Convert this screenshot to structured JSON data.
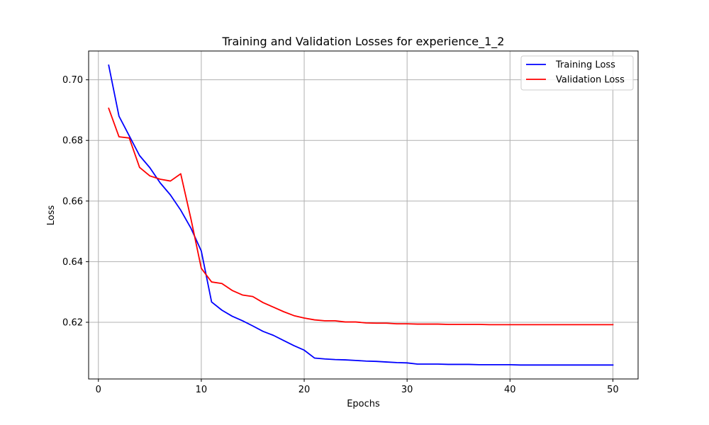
{
  "chart_data": {
    "type": "line",
    "title": "Training and Validation Losses for experience_1_2",
    "xlabel": "Epochs",
    "ylabel": "Loss",
    "xlim": [
      -0.95,
      52.45
    ],
    "ylim": [
      0.6013,
      0.7095
    ],
    "xticks": [
      0,
      10,
      20,
      30,
      40,
      50
    ],
    "yticks": [
      0.62,
      0.64,
      0.66,
      0.68,
      0.7
    ],
    "xtick_labels": [
      "0",
      "10",
      "20",
      "30",
      "40",
      "50"
    ],
    "ytick_labels": [
      "0.62",
      "0.64",
      "0.66",
      "0.68",
      "0.70"
    ],
    "grid": true,
    "legend": "top-right",
    "x": [
      1,
      2,
      3,
      4,
      5,
      6,
      7,
      8,
      9,
      10,
      11,
      12,
      13,
      14,
      15,
      16,
      17,
      18,
      19,
      20,
      21,
      22,
      23,
      24,
      25,
      26,
      27,
      28,
      29,
      30,
      31,
      32,
      33,
      34,
      35,
      36,
      37,
      38,
      39,
      40,
      41,
      42,
      43,
      44,
      45,
      46,
      47,
      48,
      49,
      50
    ],
    "series": [
      {
        "name": "Training Loss",
        "color": "#0000ff",
        "values": [
          0.7048,
          0.688,
          0.6815,
          0.675,
          0.671,
          0.666,
          0.662,
          0.657,
          0.651,
          0.6435,
          0.6267,
          0.624,
          0.622,
          0.6205,
          0.6188,
          0.617,
          0.6157,
          0.614,
          0.6123,
          0.6108,
          0.6082,
          0.6079,
          0.6077,
          0.6076,
          0.6074,
          0.6072,
          0.6071,
          0.6069,
          0.6067,
          0.6066,
          0.6062,
          0.6062,
          0.6062,
          0.6061,
          0.6061,
          0.6061,
          0.606,
          0.606,
          0.606,
          0.606,
          0.6059,
          0.6059,
          0.6059,
          0.6059,
          0.6059,
          0.6059,
          0.6059,
          0.6059,
          0.6059,
          0.6059
        ]
      },
      {
        "name": "Validation Loss",
        "color": "#ff0000",
        "values": [
          0.6906,
          0.6812,
          0.6808,
          0.6711,
          0.6683,
          0.6672,
          0.6666,
          0.669,
          0.654,
          0.6378,
          0.6333,
          0.6328,
          0.6305,
          0.629,
          0.6285,
          0.6265,
          0.625,
          0.6235,
          0.6222,
          0.6214,
          0.6208,
          0.6205,
          0.6205,
          0.6201,
          0.6201,
          0.6198,
          0.6197,
          0.6197,
          0.6195,
          0.6195,
          0.6194,
          0.6194,
          0.6194,
          0.6193,
          0.6193,
          0.6193,
          0.6193,
          0.6192,
          0.6192,
          0.6192,
          0.6192,
          0.6192,
          0.6192,
          0.6192,
          0.6192,
          0.6192,
          0.6192,
          0.6192,
          0.6192,
          0.6192
        ]
      }
    ]
  }
}
